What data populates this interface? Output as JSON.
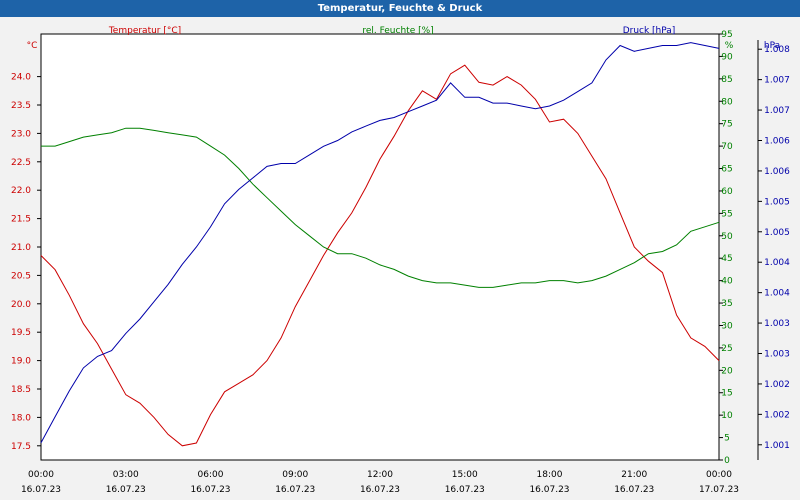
{
  "window": {
    "title": "Temperatur, Feuchte & Druck"
  },
  "colors": {
    "temperature": "#cc0000",
    "humidity": "#008000",
    "pressure": "#0000aa",
    "titlebar": "#1e63a8",
    "background": "#f2f2f2"
  },
  "chart_data": {
    "type": "line",
    "title": "Temperatur, Feuchte & Druck",
    "grid": true,
    "x": {
      "ticks": [
        "00:00",
        "03:00",
        "06:00",
        "09:00",
        "12:00",
        "15:00",
        "18:00",
        "21:00",
        "00:00"
      ],
      "dates": [
        "16.07.23",
        "16.07.23",
        "16.07.23",
        "16.07.23",
        "16.07.23",
        "16.07.23",
        "16.07.23",
        "16.07.23",
        "17.07.23"
      ],
      "range": [
        "16.07.23 00:00",
        "17.07.23 00:00"
      ]
    },
    "axes": {
      "temperature": {
        "label": "Temperatur [°C]",
        "unit": "°C",
        "side": "left",
        "ylim": [
          17.25,
          24.75
        ],
        "ticks": [
          "17.5",
          "18.0",
          "18.5",
          "19.0",
          "19.5",
          "20.0",
          "20.5",
          "21.0",
          "21.5",
          "22.0",
          "22.5",
          "23.0",
          "23.5",
          "24.0"
        ]
      },
      "humidity": {
        "label": "rel. Feuchte [%]",
        "unit": "%",
        "side": "right",
        "ylim": [
          0,
          95
        ],
        "ticks": [
          "0",
          "5",
          "10",
          "15",
          "20",
          "25",
          "30",
          "35",
          "40",
          "45",
          "50",
          "55",
          "60",
          "65",
          "70",
          "75",
          "80",
          "85",
          "90",
          "95"
        ]
      },
      "pressure": {
        "label": "Druck [hPa]",
        "unit": "hPa",
        "side": "right",
        "ylim": [
          1000.8,
          1008.2
        ],
        "ticks": [
          "1.001",
          "1.002",
          "1.002",
          "1.003",
          "1.003",
          "1.004",
          "1.004",
          "1.005",
          "1.005",
          "1.006",
          "1.006",
          "1.007",
          "1.007",
          "1.008"
        ]
      }
    },
    "series": [
      {
        "name": "Temperatur [°C]",
        "axis": "temperature",
        "x_hours": [
          0,
          0.5,
          1,
          1.5,
          2,
          2.5,
          3,
          3.5,
          4,
          4.5,
          5,
          5.5,
          6,
          6.5,
          7,
          7.5,
          8,
          8.5,
          9,
          9.5,
          10,
          10.5,
          11,
          11.5,
          12,
          12.5,
          13,
          13.5,
          14,
          14.5,
          15,
          15.5,
          16,
          16.5,
          17,
          17.5,
          18,
          18.5,
          19,
          19.5,
          20,
          20.5,
          21,
          21.5,
          22,
          22.5,
          23,
          23.5,
          24
        ],
        "values": [
          20.85,
          20.6,
          20.15,
          19.65,
          19.3,
          18.85,
          18.4,
          18.25,
          18.0,
          17.7,
          17.5,
          17.55,
          18.05,
          18.45,
          18.6,
          18.75,
          19.0,
          19.4,
          19.95,
          20.4,
          20.85,
          21.25,
          21.6,
          22.05,
          22.55,
          22.95,
          23.4,
          23.75,
          23.6,
          24.05,
          24.2,
          23.9,
          23.85,
          24.0,
          23.85,
          23.6,
          23.2,
          23.25,
          23.0,
          22.6,
          22.2,
          21.6,
          21.0,
          20.75,
          20.55,
          19.8,
          19.4,
          19.25,
          19.0
        ]
      },
      {
        "name": "rel. Feuchte [%]",
        "axis": "humidity",
        "x_hours": [
          0,
          0.5,
          1,
          1.5,
          2,
          2.5,
          3,
          3.5,
          4,
          4.5,
          5,
          5.5,
          6,
          6.5,
          7,
          7.5,
          8,
          8.5,
          9,
          9.5,
          10,
          10.5,
          11,
          11.5,
          12,
          12.5,
          13,
          13.5,
          14,
          14.5,
          15,
          15.5,
          16,
          16.5,
          17,
          17.5,
          18,
          18.5,
          19,
          19.5,
          20,
          20.5,
          21,
          21.5,
          22,
          22.5,
          23,
          23.5,
          24
        ],
        "values": [
          70,
          70,
          71,
          72,
          72.5,
          73,
          74,
          74,
          73.5,
          73,
          72.5,
          72,
          70,
          68,
          65,
          61.5,
          58.5,
          55.5,
          52.5,
          50,
          47.5,
          46,
          46,
          45,
          43.5,
          42.5,
          41,
          40,
          39.5,
          39.5,
          39,
          38.5,
          38.5,
          39,
          39.5,
          39.5,
          40,
          40,
          39.5,
          40,
          41,
          42.5,
          44,
          46,
          46.5,
          48,
          51,
          52,
          53
        ]
      },
      {
        "name": "Druck [hPa]",
        "axis": "pressure",
        "x_hours": [
          0,
          0.5,
          1,
          1.5,
          2,
          2.5,
          3,
          3.5,
          4,
          4.5,
          5,
          5.5,
          6,
          6.5,
          7,
          7.5,
          8,
          8.5,
          9,
          9.5,
          10,
          10.5,
          11,
          11.5,
          12,
          12.5,
          13,
          13.5,
          14,
          14.5,
          15,
          15.5,
          16,
          16.5,
          17,
          17.5,
          18,
          18.5,
          19,
          19.5,
          20,
          20.5,
          21,
          21.5,
          22,
          22.5,
          23,
          23.5,
          24
        ],
        "values": [
          1001.1,
          1001.55,
          1002.0,
          1002.4,
          1002.6,
          1002.7,
          1003.0,
          1003.25,
          1003.55,
          1003.85,
          1004.2,
          1004.5,
          1004.85,
          1005.25,
          1005.5,
          1005.7,
          1005.9,
          1005.95,
          1005.95,
          1006.1,
          1006.25,
          1006.35,
          1006.5,
          1006.6,
          1006.7,
          1006.75,
          1006.85,
          1006.95,
          1007.05,
          1007.35,
          1007.1,
          1007.1,
          1007.0,
          1007.0,
          1006.95,
          1006.9,
          1006.95,
          1007.05,
          1007.2,
          1007.35,
          1007.75,
          1008.0,
          1007.9,
          1007.95,
          1008.0,
          1008.0,
          1008.05,
          1008.0,
          1007.95
        ]
      }
    ]
  }
}
